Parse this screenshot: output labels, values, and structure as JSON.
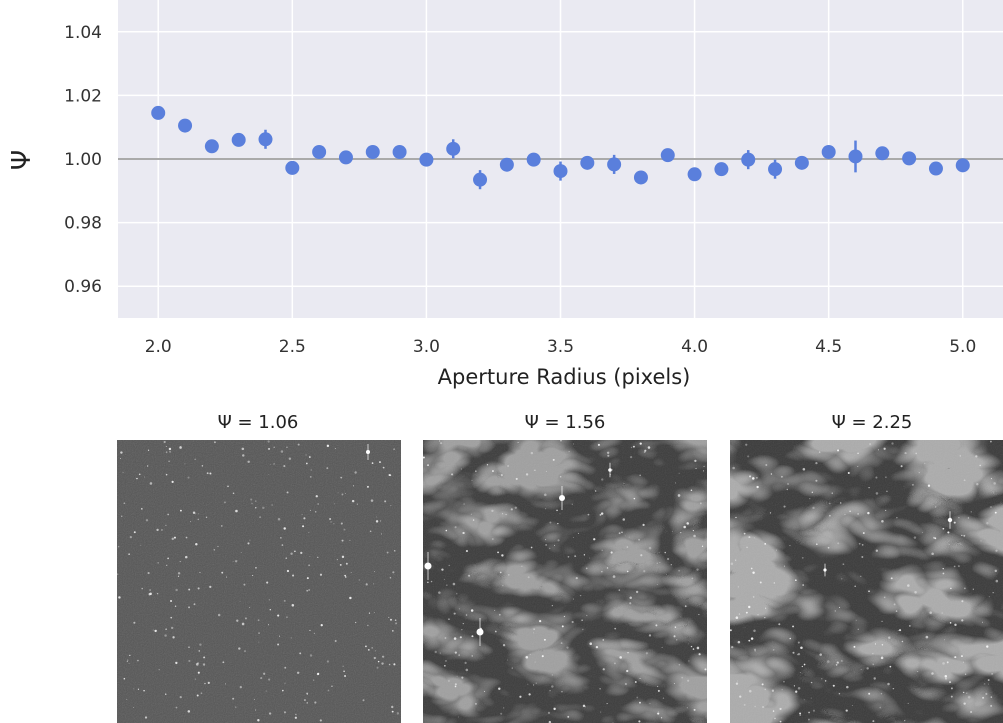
{
  "chart_data": [
    {
      "type": "scatter",
      "xlabel": "Aperture Radius (pixels)",
      "ylabel": "Ψ",
      "xlim": [
        1.85,
        5.15
      ],
      "ylim": [
        0.95,
        1.05
      ],
      "x_ticks": [
        2.0,
        2.5,
        3.0,
        3.5,
        4.0,
        4.5,
        5.0
      ],
      "x_tick_labels": [
        "2.0",
        "2.5",
        "3.0",
        "3.5",
        "4.0",
        "4.5",
        "5.0"
      ],
      "y_ticks": [
        0.96,
        0.98,
        1.0,
        1.02,
        1.04
      ],
      "y_tick_labels": [
        "0.96",
        "0.98",
        "1.00",
        "1.02",
        "1.04"
      ],
      "reference_line": 1.0,
      "grid": true,
      "colors": {
        "points": "#5a7fdc",
        "background": "#eaeaf2",
        "grid": "#ffffff",
        "reference": "#aaaaaa"
      },
      "series": [
        {
          "points": [
            {
              "x": 2.0,
              "y": 1.0145,
              "err": 0.0015
            },
            {
              "x": 2.1,
              "y": 1.0105,
              "err": 0.001
            },
            {
              "x": 2.2,
              "y": 1.004,
              "err": 0.001
            },
            {
              "x": 2.3,
              "y": 1.006,
              "err": 0.001
            },
            {
              "x": 2.4,
              "y": 1.0062,
              "err": 0.003
            },
            {
              "x": 2.5,
              "y": 0.9972,
              "err": 0.001
            },
            {
              "x": 2.6,
              "y": 1.0022,
              "err": 0.002
            },
            {
              "x": 2.7,
              "y": 1.0005,
              "err": 0.001
            },
            {
              "x": 2.8,
              "y": 1.0022,
              "err": 0.002
            },
            {
              "x": 2.9,
              "y": 1.0022,
              "err": 0.001
            },
            {
              "x": 3.0,
              "y": 0.9998,
              "err": 0.001
            },
            {
              "x": 3.1,
              "y": 1.0032,
              "err": 0.003
            },
            {
              "x": 3.2,
              "y": 0.9935,
              "err": 0.003
            },
            {
              "x": 3.3,
              "y": 0.9982,
              "err": 0.001
            },
            {
              "x": 3.4,
              "y": 0.9998,
              "err": 0.001
            },
            {
              "x": 3.5,
              "y": 0.9962,
              "err": 0.003
            },
            {
              "x": 3.6,
              "y": 0.9988,
              "err": 0.001
            },
            {
              "x": 3.7,
              "y": 0.9983,
              "err": 0.003
            },
            {
              "x": 3.8,
              "y": 0.9942,
              "err": 0.001
            },
            {
              "x": 3.9,
              "y": 1.0012,
              "err": 0.001
            },
            {
              "x": 4.0,
              "y": 0.9952,
              "err": 0.002
            },
            {
              "x": 4.1,
              "y": 0.9968,
              "err": 0.001
            },
            {
              "x": 4.2,
              "y": 0.9998,
              "err": 0.003
            },
            {
              "x": 4.3,
              "y": 0.9968,
              "err": 0.003
            },
            {
              "x": 4.4,
              "y": 0.9988,
              "err": 0.001
            },
            {
              "x": 4.5,
              "y": 1.0022,
              "err": 0.001
            },
            {
              "x": 4.6,
              "y": 1.0008,
              "err": 0.005
            },
            {
              "x": 4.7,
              "y": 1.0018,
              "err": 0.002
            },
            {
              "x": 4.8,
              "y": 1.0002,
              "err": 0.002
            },
            {
              "x": 4.9,
              "y": 0.997,
              "err": 0.001
            },
            {
              "x": 5.0,
              "y": 0.998,
              "err": 0.001
            }
          ]
        }
      ]
    }
  ],
  "panels": [
    {
      "title": "Ψ = 1.06"
    },
    {
      "title": "Ψ = 1.56"
    },
    {
      "title": "Ψ = 2.25"
    }
  ]
}
